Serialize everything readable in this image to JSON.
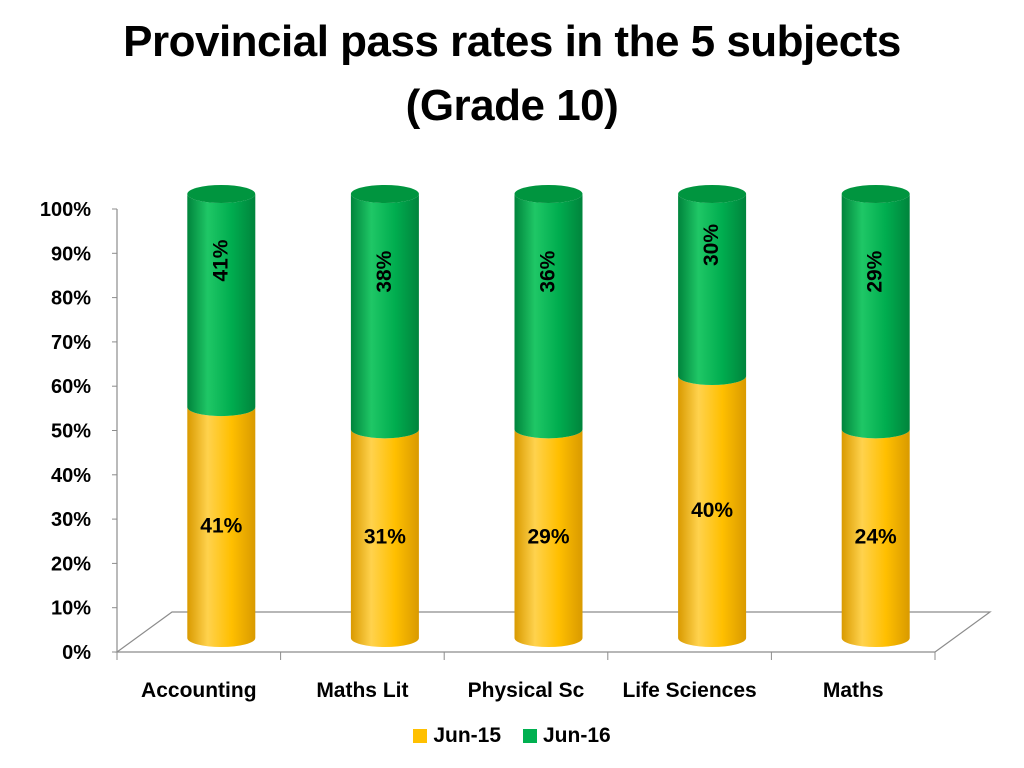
{
  "chart_data": {
    "type": "bar",
    "stacked": true,
    "title": "Provincial pass rates in the 5 subjects",
    "subtitle": "(Grade 10)",
    "categories": [
      "Accounting",
      "Maths Lit",
      "Physical Sc",
      "Life Sciences",
      "Maths"
    ],
    "series": [
      {
        "name": "Jun-15",
        "color": "#FFC000",
        "values": [
          52,
          47,
          47,
          59,
          47
        ],
        "labels": [
          "41%",
          "31%",
          "29%",
          "40%",
          "24%"
        ]
      },
      {
        "name": "Jun-16",
        "color": "#00B050",
        "values": [
          48,
          53,
          53,
          41,
          53
        ],
        "labels": [
          "41%",
          "38%",
          "36%",
          "30%",
          "29%"
        ]
      }
    ],
    "yticks": [
      "0%",
      "10%",
      "20%",
      "30%",
      "40%",
      "50%",
      "60%",
      "70%",
      "80%",
      "90%",
      "100%"
    ],
    "ylim": [
      0,
      100
    ],
    "legend_position": "bottom",
    "style": "3d-cylinder"
  }
}
